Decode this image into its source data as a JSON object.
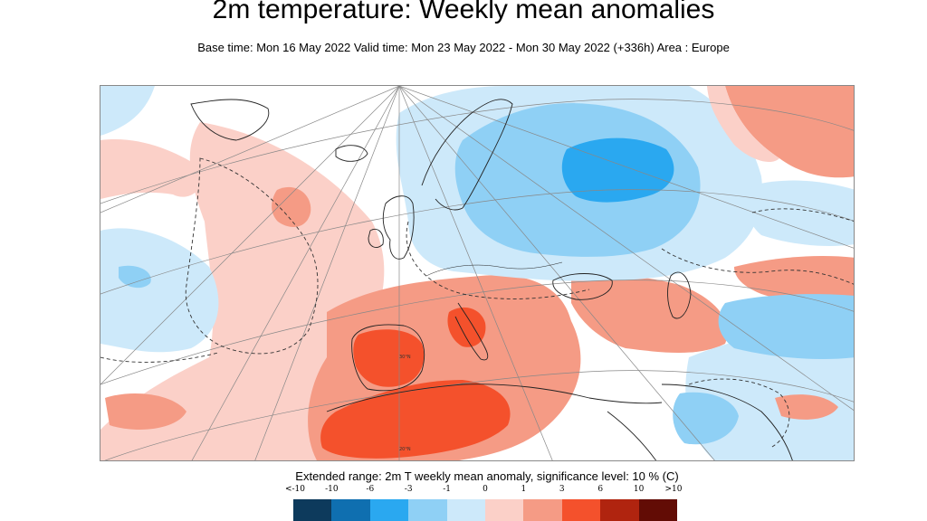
{
  "map": {
    "title": "2m temperature: Weekly mean anomalies",
    "subtitle": "Base time: Mon 16 May 2022 Valid time: Mon 23 May 2022 - Mon 30 May 2022 (+336h) Area : Europe",
    "grid_labels": [
      "30°N",
      "20°N"
    ]
  },
  "legend": {
    "title": "Extended range: 2m T weekly mean anomaly, significance level: 10 % (C)",
    "ticks": [
      "<-10",
      "-10",
      "-6",
      "-3",
      "-1",
      "0",
      "1",
      "3",
      "6",
      "10",
      ">10"
    ],
    "colors": [
      "#0d3a5c",
      "#0f6fb0",
      "#2aa8f0",
      "#8fd0f5",
      "#cde9fa",
      "#fbd0c8",
      "#f59b85",
      "#f4512c",
      "#b0240f",
      "#620c05"
    ]
  }
}
